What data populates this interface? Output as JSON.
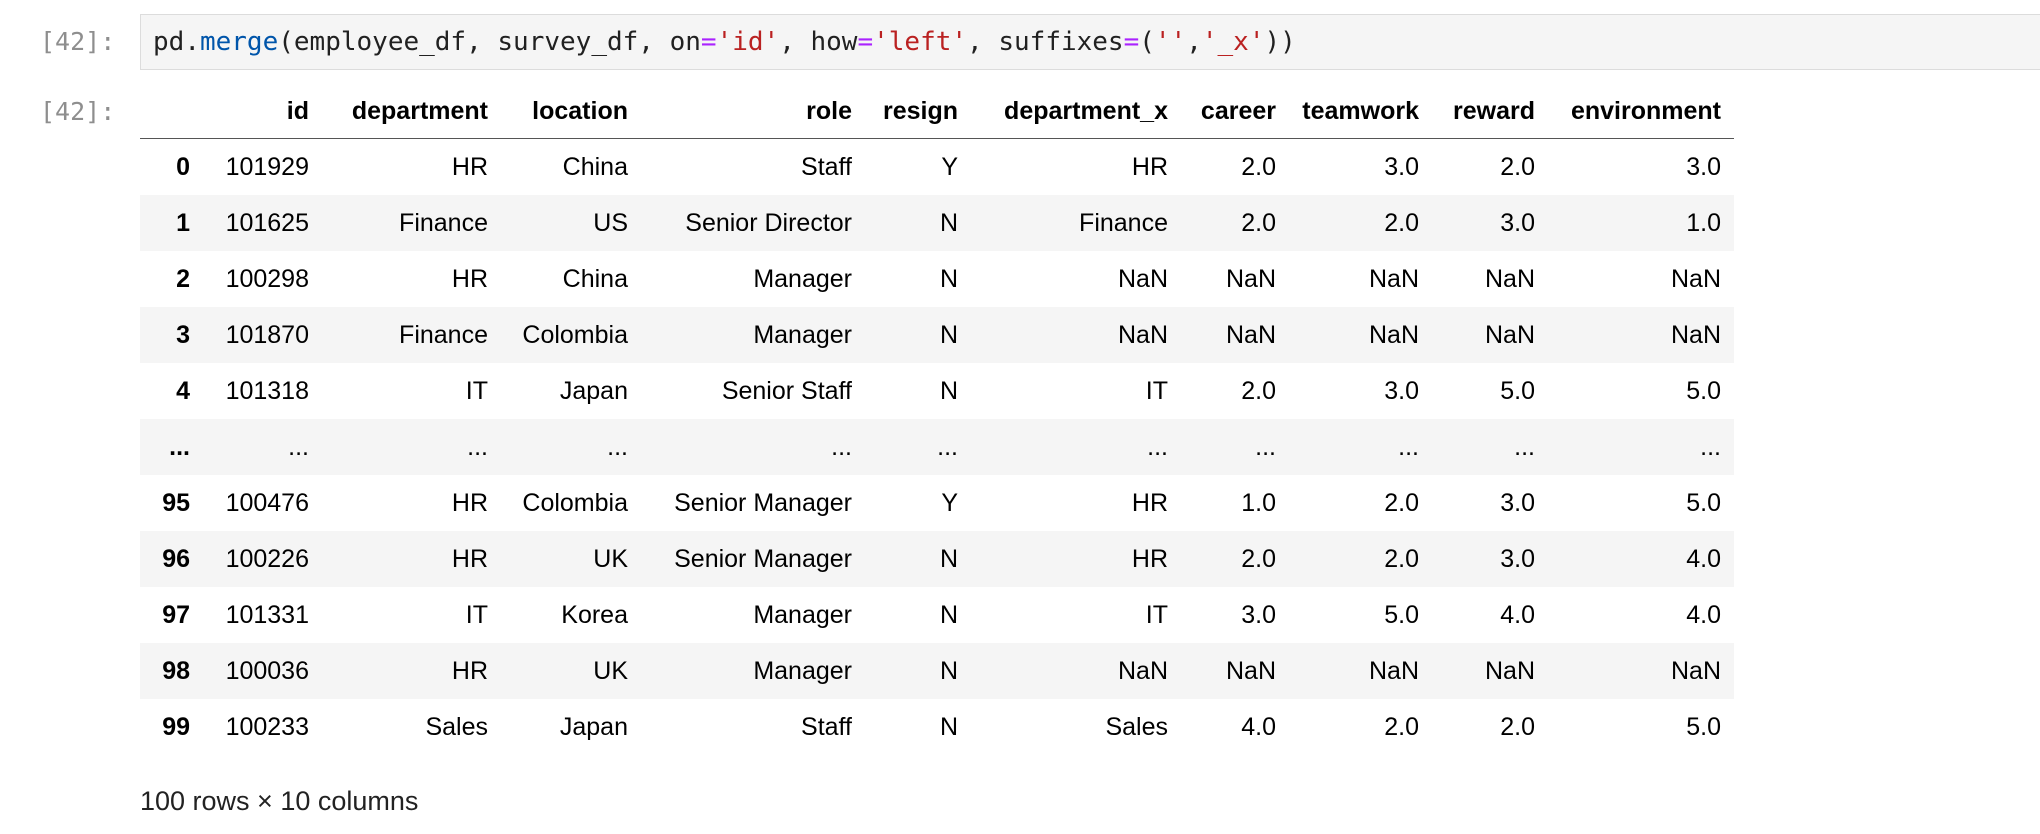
{
  "input_cell": {
    "prompt": "[42]:",
    "code": {
      "obj": "pd",
      "dot": ".",
      "func": "merge",
      "arg1": "(employee_df, survey_df, ",
      "kw_on": "on",
      "eq": "=",
      "val_on": "'id'",
      "sep": ", ",
      "kw_how": "how",
      "val_how": "'left'",
      "kw_suffixes": "suffixes",
      "open": "(",
      "val_s1": "''",
      "comma": ",",
      "val_s2": "'_x'",
      "close": "))"
    }
  },
  "output_cell": {
    "prompt": "[42]:",
    "columns": [
      "id",
      "department",
      "location",
      "role",
      "resign",
      "department_x",
      "career",
      "teamwork",
      "reward",
      "environment"
    ],
    "rows": [
      {
        "index": "0",
        "cells": [
          "101929",
          "HR",
          "China",
          "Staff",
          "Y",
          "HR",
          "2.0",
          "3.0",
          "2.0",
          "3.0"
        ]
      },
      {
        "index": "1",
        "cells": [
          "101625",
          "Finance",
          "US",
          "Senior Director",
          "N",
          "Finance",
          "2.0",
          "2.0",
          "3.0",
          "1.0"
        ]
      },
      {
        "index": "2",
        "cells": [
          "100298",
          "HR",
          "China",
          "Manager",
          "N",
          "NaN",
          "NaN",
          "NaN",
          "NaN",
          "NaN"
        ]
      },
      {
        "index": "3",
        "cells": [
          "101870",
          "Finance",
          "Colombia",
          "Manager",
          "N",
          "NaN",
          "NaN",
          "NaN",
          "NaN",
          "NaN"
        ]
      },
      {
        "index": "4",
        "cells": [
          "101318",
          "IT",
          "Japan",
          "Senior Staff",
          "N",
          "IT",
          "2.0",
          "3.0",
          "5.0",
          "5.0"
        ]
      },
      {
        "index": "...",
        "cells": [
          "...",
          "...",
          "...",
          "...",
          "...",
          "...",
          "...",
          "...",
          "...",
          "..."
        ]
      },
      {
        "index": "95",
        "cells": [
          "100476",
          "HR",
          "Colombia",
          "Senior Manager",
          "Y",
          "HR",
          "1.0",
          "2.0",
          "3.0",
          "5.0"
        ]
      },
      {
        "index": "96",
        "cells": [
          "100226",
          "HR",
          "UK",
          "Senior Manager",
          "N",
          "HR",
          "2.0",
          "2.0",
          "3.0",
          "4.0"
        ]
      },
      {
        "index": "97",
        "cells": [
          "101331",
          "IT",
          "Korea",
          "Manager",
          "N",
          "IT",
          "3.0",
          "5.0",
          "4.0",
          "4.0"
        ]
      },
      {
        "index": "98",
        "cells": [
          "100036",
          "HR",
          "UK",
          "Manager",
          "N",
          "NaN",
          "NaN",
          "NaN",
          "NaN",
          "NaN"
        ]
      },
      {
        "index": "99",
        "cells": [
          "100233",
          "Sales",
          "Japan",
          "Staff",
          "N",
          "Sales",
          "4.0",
          "2.0",
          "2.0",
          "5.0"
        ]
      }
    ],
    "summary": "100 rows × 10 columns"
  }
}
